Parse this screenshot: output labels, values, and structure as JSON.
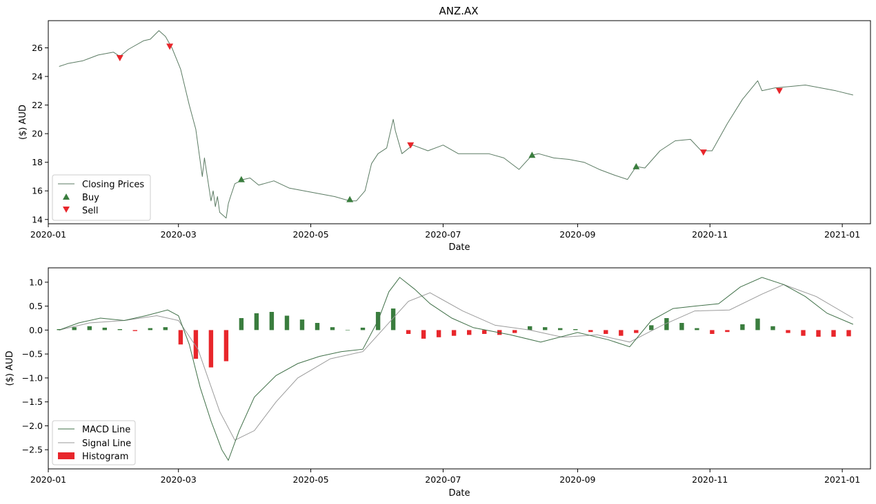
{
  "chart_data": [
    {
      "type": "line",
      "title": "ANZ.AX",
      "xlabel": "Date",
      "ylabel": "($) AUD",
      "xlim": [
        "2020-01-01",
        "2021-01-14"
      ],
      "ylim": [
        13.7,
        27.9
      ],
      "x_ticks": [
        "2020-01",
        "2020-03",
        "2020-05",
        "2020-07",
        "2020-09",
        "2020-11",
        "2021-01"
      ],
      "y_ticks": [
        14,
        16,
        18,
        20,
        22,
        24,
        26
      ],
      "grid": false,
      "legend_position": "lower-left",
      "legend": [
        "Closing Prices",
        "Buy",
        "Sell"
      ],
      "series": [
        {
          "name": "Closing Prices",
          "x": [
            "2020-01-06",
            "2020-01-10",
            "2020-01-17",
            "2020-01-24",
            "2020-01-31",
            "2020-02-03",
            "2020-02-07",
            "2020-02-14",
            "2020-02-17",
            "2020-02-21",
            "2020-02-24",
            "2020-02-27",
            "2020-03-02",
            "2020-03-06",
            "2020-03-09",
            "2020-03-12",
            "2020-03-13",
            "2020-03-16",
            "2020-03-17",
            "2020-03-18",
            "2020-03-19",
            "2020-03-20",
            "2020-03-23",
            "2020-03-24",
            "2020-03-25",
            "2020-03-27",
            "2020-03-31",
            "2020-04-03",
            "2020-04-07",
            "2020-04-14",
            "2020-04-21",
            "2020-04-28",
            "2020-05-05",
            "2020-05-12",
            "2020-05-19",
            "2020-05-22",
            "2020-05-26",
            "2020-05-29",
            "2020-06-01",
            "2020-06-05",
            "2020-06-08",
            "2020-06-09",
            "2020-06-12",
            "2020-06-17",
            "2020-06-24",
            "2020-07-01",
            "2020-07-08",
            "2020-07-15",
            "2020-07-22",
            "2020-07-29",
            "2020-08-05",
            "2020-08-11",
            "2020-08-14",
            "2020-08-21",
            "2020-08-28",
            "2020-09-04",
            "2020-09-11",
            "2020-09-18",
            "2020-09-24",
            "2020-09-28",
            "2020-10-02",
            "2020-10-09",
            "2020-10-16",
            "2020-10-23",
            "2020-10-28",
            "2020-11-02",
            "2020-11-09",
            "2020-11-16",
            "2020-11-23",
            "2020-11-25",
            "2020-12-01",
            "2020-12-08",
            "2020-12-15",
            "2020-12-22",
            "2020-12-29",
            "2021-01-06"
          ],
          "values": [
            24.7,
            24.9,
            25.1,
            25.5,
            25.7,
            25.4,
            25.9,
            26.5,
            26.6,
            27.2,
            26.8,
            26.0,
            24.5,
            22.0,
            20.3,
            17.0,
            18.3,
            15.3,
            16.0,
            14.9,
            15.6,
            14.5,
            14.1,
            15.1,
            15.6,
            16.5,
            16.8,
            16.9,
            16.4,
            16.7,
            16.2,
            16.0,
            15.8,
            15.6,
            15.3,
            15.3,
            16.0,
            17.9,
            18.6,
            19.0,
            21.0,
            20.2,
            18.6,
            19.2,
            18.8,
            19.2,
            18.6,
            18.6,
            18.6,
            18.3,
            17.5,
            18.5,
            18.6,
            18.3,
            18.2,
            18.0,
            17.5,
            17.1,
            16.8,
            17.7,
            17.6,
            18.8,
            19.5,
            19.6,
            18.8,
            18.8,
            20.7,
            22.4,
            23.7,
            23.0,
            23.2,
            23.3,
            23.4,
            23.2,
            23.0,
            22.7
          ]
        },
        {
          "name": "Buy",
          "marker": "triangle-up",
          "x": [
            "2020-03-30",
            "2020-05-19",
            "2020-08-11",
            "2020-09-28"
          ],
          "values": [
            16.8,
            15.4,
            18.5,
            17.7
          ]
        },
        {
          "name": "Sell",
          "marker": "triangle-down",
          "x": [
            "2020-02-03",
            "2020-02-26",
            "2020-06-16",
            "2020-10-29",
            "2020-12-03"
          ],
          "values": [
            25.3,
            26.1,
            19.2,
            18.7,
            23.0
          ]
        }
      ]
    },
    {
      "type": "line",
      "title": "",
      "xlabel": "Date",
      "ylabel": "($) AUD",
      "xlim": [
        "2020-01-01",
        "2021-01-14"
      ],
      "ylim": [
        -2.9,
        1.3
      ],
      "x_ticks": [
        "2020-01",
        "2020-03",
        "2020-05",
        "2020-07",
        "2020-09",
        "2020-11",
        "2021-01"
      ],
      "y_ticks": [
        1.0,
        0.5,
        0.0,
        -0.5,
        -1.0,
        -1.5,
        -2.0,
        -2.5
      ],
      "y_tick_labels": [
        "1.0",
        "0.5",
        "0.0",
        "−0.5",
        "−1.0",
        "−1.5",
        "−2.0",
        "−2.5"
      ],
      "grid": false,
      "legend_position": "lower-left",
      "legend": [
        "MACD Line",
        "Signal Line",
        "Histogram"
      ],
      "series": [
        {
          "name": "MACD Line",
          "x": [
            "2020-01-06",
            "2020-01-15",
            "2020-01-25",
            "2020-02-05",
            "2020-02-15",
            "2020-02-25",
            "2020-03-01",
            "2020-03-06",
            "2020-03-11",
            "2020-03-16",
            "2020-03-21",
            "2020-03-24",
            "2020-03-29",
            "2020-04-05",
            "2020-04-15",
            "2020-04-25",
            "2020-05-05",
            "2020-05-15",
            "2020-05-25",
            "2020-06-01",
            "2020-06-06",
            "2020-06-11",
            "2020-06-18",
            "2020-06-25",
            "2020-07-05",
            "2020-07-15",
            "2020-08-01",
            "2020-08-15",
            "2020-09-01",
            "2020-09-15",
            "2020-09-25",
            "2020-10-05",
            "2020-10-15",
            "2020-10-25",
            "2020-11-05",
            "2020-11-15",
            "2020-11-25",
            "2020-12-05",
            "2020-12-15",
            "2020-12-25",
            "2021-01-06"
          ],
          "values": [
            0.0,
            0.15,
            0.25,
            0.2,
            0.3,
            0.42,
            0.3,
            -0.3,
            -1.2,
            -1.9,
            -2.5,
            -2.72,
            -2.1,
            -1.4,
            -0.95,
            -0.7,
            -0.55,
            -0.45,
            -0.4,
            0.2,
            0.8,
            1.1,
            0.85,
            0.55,
            0.25,
            0.05,
            -0.1,
            -0.25,
            -0.05,
            -0.2,
            -0.35,
            0.2,
            0.45,
            0.5,
            0.55,
            0.9,
            1.1,
            0.95,
            0.7,
            0.35,
            0.12
          ]
        },
        {
          "name": "Signal Line",
          "x": [
            "2020-01-06",
            "2020-01-20",
            "2020-02-05",
            "2020-02-20",
            "2020-03-01",
            "2020-03-10",
            "2020-03-20",
            "2020-03-27",
            "2020-04-05",
            "2020-04-15",
            "2020-04-25",
            "2020-05-10",
            "2020-05-25",
            "2020-06-05",
            "2020-06-15",
            "2020-06-25",
            "2020-07-10",
            "2020-07-25",
            "2020-08-10",
            "2020-08-25",
            "2020-09-10",
            "2020-09-25",
            "2020-10-10",
            "2020-10-25",
            "2020-11-10",
            "2020-11-25",
            "2020-12-05",
            "2020-12-20",
            "2021-01-06"
          ],
          "values": [
            0.0,
            0.15,
            0.2,
            0.3,
            0.2,
            -0.4,
            -1.7,
            -2.3,
            -2.1,
            -1.5,
            -1.0,
            -0.6,
            -0.45,
            0.1,
            0.6,
            0.78,
            0.4,
            0.1,
            0.0,
            -0.15,
            -0.1,
            -0.25,
            0.1,
            0.4,
            0.42,
            0.75,
            0.95,
            0.7,
            0.25
          ]
        },
        {
          "name": "Histogram",
          "x": [
            "2020-01-06",
            "2020-01-13",
            "2020-01-20",
            "2020-01-27",
            "2020-02-03",
            "2020-02-10",
            "2020-02-17",
            "2020-02-24",
            "2020-03-02",
            "2020-03-09",
            "2020-03-16",
            "2020-03-23",
            "2020-03-30",
            "2020-04-06",
            "2020-04-13",
            "2020-04-20",
            "2020-04-27",
            "2020-05-04",
            "2020-05-11",
            "2020-05-18",
            "2020-05-25",
            "2020-06-01",
            "2020-06-08",
            "2020-06-15",
            "2020-06-22",
            "2020-06-29",
            "2020-07-06",
            "2020-07-13",
            "2020-07-20",
            "2020-07-27",
            "2020-08-03",
            "2020-08-10",
            "2020-08-17",
            "2020-08-24",
            "2020-08-31",
            "2020-09-07",
            "2020-09-14",
            "2020-09-21",
            "2020-09-28",
            "2020-10-05",
            "2020-10-12",
            "2020-10-19",
            "2020-10-26",
            "2020-11-02",
            "2020-11-09",
            "2020-11-16",
            "2020-11-23",
            "2020-11-30",
            "2020-12-07",
            "2020-12-14",
            "2020-12-21",
            "2020-12-28",
            "2021-01-04"
          ],
          "values": [
            0.02,
            0.06,
            0.08,
            0.05,
            0.02,
            -0.02,
            0.04,
            0.06,
            -0.3,
            -0.6,
            -0.78,
            -0.65,
            0.25,
            0.35,
            0.38,
            0.3,
            0.22,
            0.15,
            0.06,
            0.0,
            0.05,
            0.38,
            0.45,
            -0.08,
            -0.18,
            -0.15,
            -0.12,
            -0.1,
            -0.08,
            -0.1,
            -0.06,
            0.08,
            0.06,
            0.04,
            0.02,
            -0.04,
            -0.08,
            -0.12,
            -0.06,
            0.1,
            0.25,
            0.15,
            0.04,
            -0.08,
            -0.04,
            0.12,
            0.24,
            0.08,
            -0.06,
            -0.12,
            -0.14,
            -0.14,
            -0.13
          ]
        }
      ]
    }
  ]
}
